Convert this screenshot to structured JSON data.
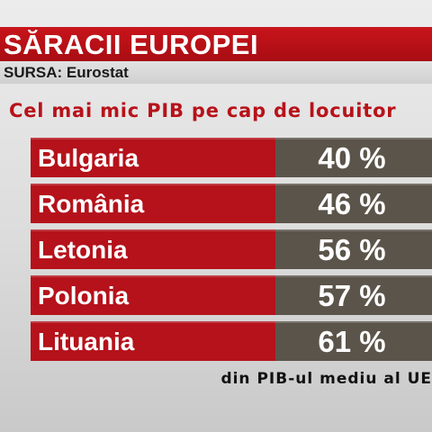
{
  "header": {
    "title": "SĂRACII EUROPEI",
    "source": "SURSA: Eurostat"
  },
  "chart_data": {
    "type": "table",
    "title": "Cel mai mic PIB pe cap de locuitor",
    "categories": [
      "Bulgaria",
      "România",
      "Letonia",
      "Polonia",
      "Lituania"
    ],
    "values": [
      40,
      46,
      56,
      57,
      61
    ],
    "value_labels": [
      "40 %",
      "46 %",
      "56 %",
      "57 %",
      "61 %"
    ],
    "footnote": "din PIB-ul mediu al UE",
    "colors": {
      "label_cell": "#b5121b",
      "value_cell": "#5b544a",
      "title_bar": "#c0121a"
    }
  }
}
